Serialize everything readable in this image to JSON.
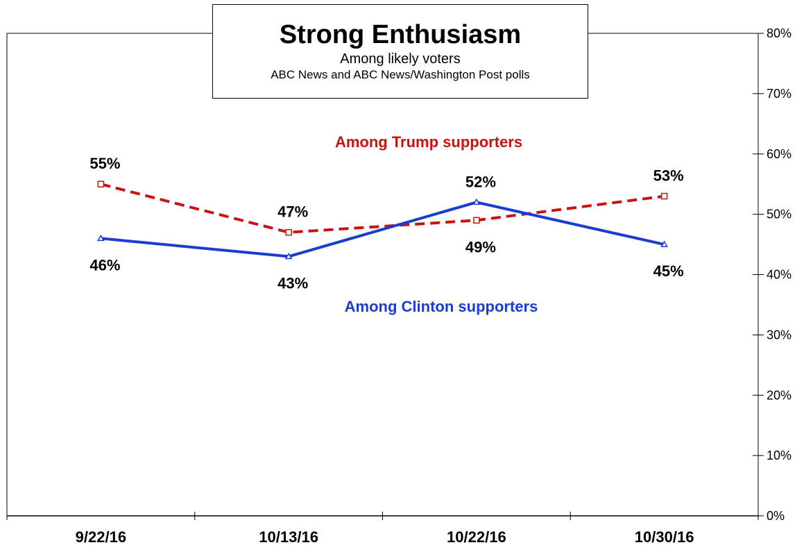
{
  "chart_data": {
    "type": "line",
    "title": "Strong Enthusiasm",
    "subtitle": "Among likely voters",
    "source": "ABC News  and ABC News/Washington  Post polls",
    "categories": [
      "9/22/16",
      "10/13/16",
      "10/22/16",
      "10/30/16"
    ],
    "y_ticks": [
      "0%",
      "10%",
      "20%",
      "30%",
      "40%",
      "50%",
      "60%",
      "70%",
      "80%"
    ],
    "ylim": [
      0,
      80
    ],
    "y_axis_side": "right",
    "grid": false,
    "series": [
      {
        "name": "Among Trump supporters",
        "values": [
          55,
          47,
          49,
          53
        ],
        "labels": [
          "55%",
          "47%",
          "49%",
          "53%"
        ],
        "color": "#cc1111",
        "style": "dashed",
        "marker": "square"
      },
      {
        "name": "Among Clinton supporters",
        "values": [
          46,
          43,
          52,
          45
        ],
        "labels": [
          "46%",
          "43%",
          "52%",
          "45%"
        ],
        "color": "#1a3cd0",
        "style": "solid",
        "marker": "triangle"
      }
    ]
  }
}
